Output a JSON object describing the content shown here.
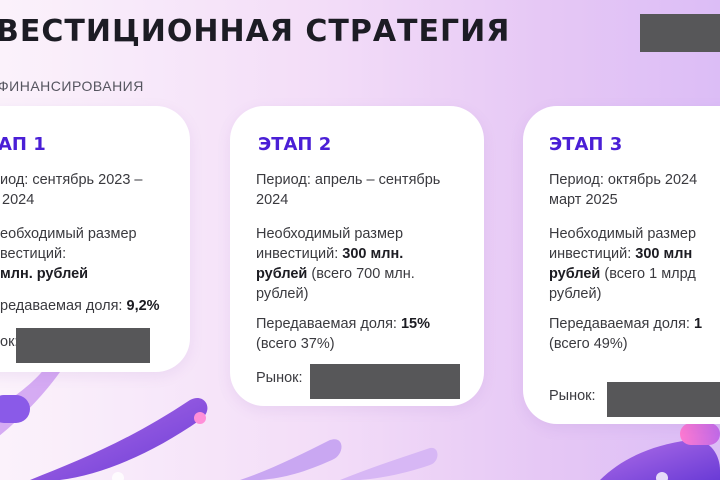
{
  "title": "ВЕСТИЦИОННАЯ СТРАТЕГИЯ",
  "subtitle": "ФИНАНСИРОВАНИЯ",
  "cards": [
    {
      "stage": "АП 1",
      "period_line1": "иод: сентябрь 2023 –",
      "period_line2": "2024",
      "invest_line1": "еобходимый размер",
      "invest_line2": "вестиций:",
      "invest_amount": "млн. рублей",
      "share_label": "редаваемая доля:",
      "share_value": "9,2%",
      "market_label": "ок:"
    },
    {
      "stage": "ЭТАП 2",
      "period_line1": "Период: апрель – сентябрь",
      "period_line2": "2024",
      "invest_line1": "Необходимый размер",
      "invest_prefix": "инвестиций:",
      "invest_amount_a": "300 млн.",
      "invest_amount_b": "рублей",
      "invest_total_a": "(всего 700 млн.",
      "invest_total_b": "рублей)",
      "share_label": "Передаваемая доля:",
      "share_value": "15%",
      "share_total": "(всего 37%)",
      "market_label": "Рынок:"
    },
    {
      "stage": "ЭТАП 3",
      "period_line1": "Период: октябрь 2024",
      "period_line2": "март 2025",
      "invest_line1": "Необходимый размер",
      "invest_prefix": "инвестиций:",
      "invest_amount_a": "300 млн",
      "invest_amount_b": "рублей",
      "invest_total_a": "(всего 1 млрд",
      "invest_total_b": "рублей)",
      "share_label": "Передаваемая доля:",
      "share_value": "1",
      "share_total": "(всего 49%)",
      "market_label": "Рынок:"
    }
  ],
  "colors": {
    "accent": "#4a1fd6",
    "redaction": "#575759",
    "text": "#3a3a3f"
  }
}
